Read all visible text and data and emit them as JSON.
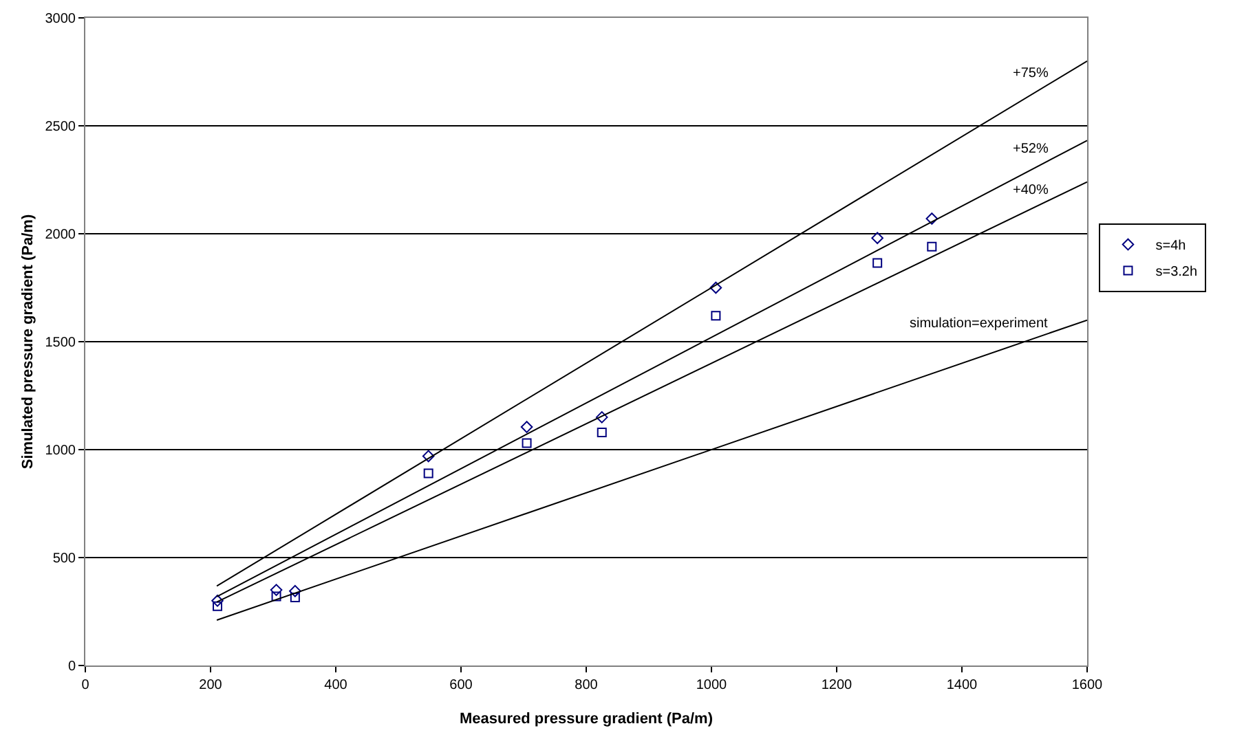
{
  "chart_data": {
    "type": "scatter",
    "xlabel": "Measured pressure gradient (Pa/m)",
    "ylabel": "Simulated pressure gradient (Pa/m)",
    "xlim": [
      0,
      1600
    ],
    "xticks": [
      0,
      200,
      400,
      600,
      800,
      1000,
      1200,
      1400,
      1600
    ],
    "ylim": [
      0,
      3000
    ],
    "yticks": [
      0,
      500,
      1000,
      1500,
      2000,
      2500,
      3000
    ],
    "grid": "y",
    "legend": "right",
    "series": [
      {
        "name": "s=4h",
        "color": "#000080",
        "marker": "diamond",
        "x": [
          211,
          305,
          335,
          548,
          705,
          825,
          1007,
          1265,
          1352
        ],
        "values": [
          300,
          350,
          345,
          970,
          1105,
          1150,
          1750,
          1980,
          2070
        ]
      },
      {
        "name": "s=3.2h",
        "color": "#000080",
        "marker": "square",
        "x": [
          211,
          305,
          335,
          548,
          705,
          825,
          1007,
          1265,
          1352
        ],
        "values": [
          275,
          320,
          315,
          890,
          1030,
          1080,
          1620,
          1865,
          1940
        ]
      },
      {
        "name": "+75%",
        "type": "line",
        "color": "#000000",
        "marker": "none",
        "x": [
          210,
          1600
        ],
        "values": [
          368,
          2800
        ]
      },
      {
        "name": "+52%",
        "type": "line",
        "color": "#000000",
        "marker": "none",
        "x": [
          210,
          1600
        ],
        "values": [
          319,
          2432
        ]
      },
      {
        "name": "+40%",
        "type": "line",
        "color": "#000000",
        "marker": "none",
        "x": [
          210,
          1600
        ],
        "values": [
          294,
          2240
        ]
      },
      {
        "name": "simulation=experiment",
        "type": "line",
        "color": "#000000",
        "marker": "none",
        "x": [
          210,
          1600
        ],
        "values": [
          210,
          1600
        ]
      }
    ]
  }
}
